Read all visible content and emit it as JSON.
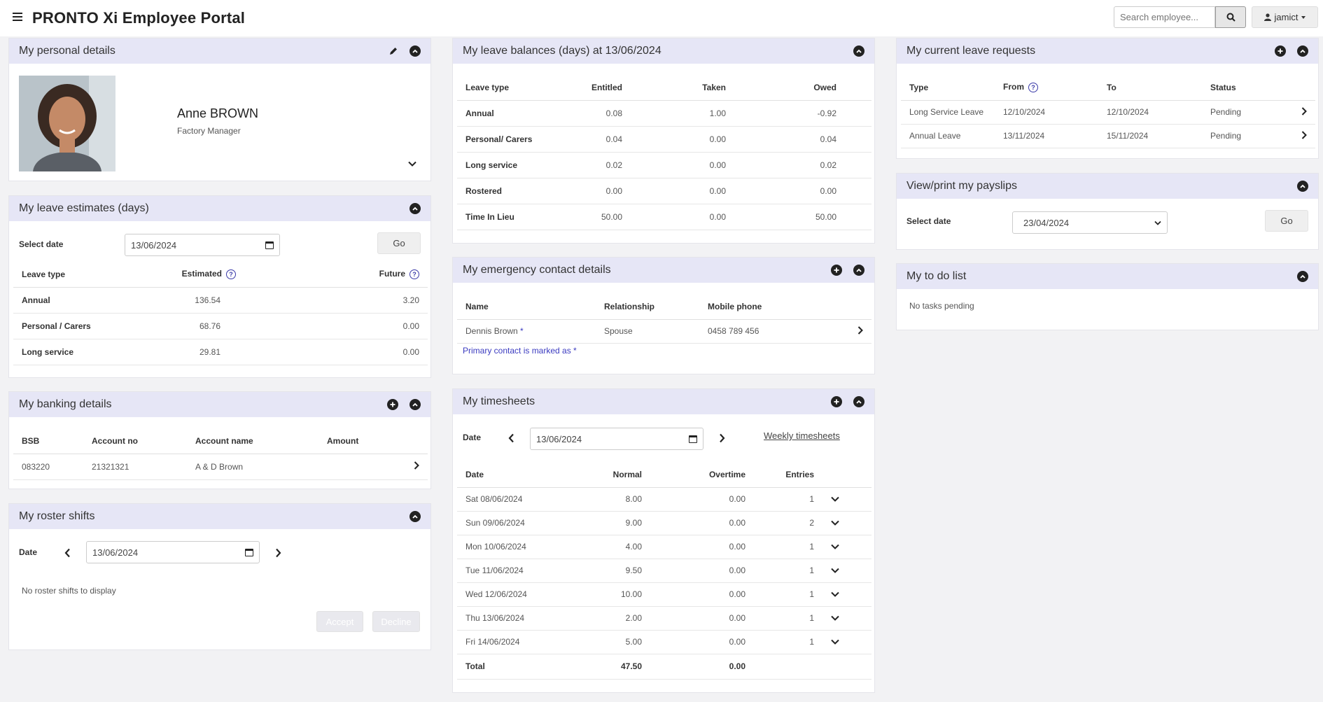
{
  "header": {
    "brand": "PRONTO Xi Employee Portal",
    "search_placeholder": "Search employee...",
    "user": "jamict"
  },
  "personal": {
    "title": "My personal details",
    "name": "Anne BROWN",
    "role": "Factory Manager"
  },
  "leave_estimates": {
    "title": "My leave estimates (days)",
    "select_date_label": "Select date",
    "date": "13/06/2024",
    "go_label": "Go",
    "columns": [
      "Leave type",
      "Estimated",
      "Future"
    ],
    "rows": [
      {
        "type": "Annual",
        "estimated": "136.54",
        "future": "3.20"
      },
      {
        "type": "Personal / Carers",
        "estimated": "68.76",
        "future": "0.00"
      },
      {
        "type": "Long service",
        "estimated": "29.81",
        "future": "0.00"
      }
    ]
  },
  "banking": {
    "title": "My banking details",
    "columns": [
      "BSB",
      "Account no",
      "Account name",
      "Amount"
    ],
    "rows": [
      {
        "bsb": "083220",
        "account_no": "21321321",
        "account_name": "A & D Brown",
        "amount": ""
      }
    ]
  },
  "roster": {
    "title": "My roster shifts",
    "date_label": "Date",
    "date": "13/06/2024",
    "empty": "No roster shifts to display",
    "accept_label": "Accept",
    "decline_label": "Decline"
  },
  "leave_balances": {
    "title": "My leave balances (days) at 13/06/2024",
    "columns": [
      "Leave type",
      "Entitled",
      "Taken",
      "Owed"
    ],
    "rows": [
      {
        "type": "Annual",
        "entitled": "0.08",
        "taken": "1.00",
        "owed": "-0.92"
      },
      {
        "type": "Personal/ Carers",
        "entitled": "0.04",
        "taken": "0.00",
        "owed": "0.04"
      },
      {
        "type": "Long service",
        "entitled": "0.02",
        "taken": "0.00",
        "owed": "0.02"
      },
      {
        "type": "Rostered",
        "entitled": "0.00",
        "taken": "0.00",
        "owed": "0.00"
      },
      {
        "type": "Time In Lieu",
        "entitled": "50.00",
        "taken": "0.00",
        "owed": "50.00"
      }
    ]
  },
  "emergency": {
    "title": "My emergency contact details",
    "columns": [
      "Name",
      "Relationship",
      "Mobile phone"
    ],
    "rows": [
      {
        "name": "Dennis Brown",
        "relationship": "Spouse",
        "mobile": "0458 789 456"
      }
    ],
    "primary_marker": "*",
    "footnote": "Primary contact is marked as *"
  },
  "timesheets": {
    "title": "My timesheets",
    "date_label": "Date",
    "date": "13/06/2024",
    "weekly_link": "Weekly timesheets",
    "columns": [
      "Date",
      "Normal",
      "Overtime",
      "Entries"
    ],
    "rows": [
      {
        "date": "Sat 08/06/2024",
        "normal": "8.00",
        "overtime": "0.00",
        "entries": "1"
      },
      {
        "date": "Sun 09/06/2024",
        "normal": "9.00",
        "overtime": "0.00",
        "entries": "2"
      },
      {
        "date": "Mon 10/06/2024",
        "normal": "4.00",
        "overtime": "0.00",
        "entries": "1"
      },
      {
        "date": "Tue 11/06/2024",
        "normal": "9.50",
        "overtime": "0.00",
        "entries": "1"
      },
      {
        "date": "Wed 12/06/2024",
        "normal": "10.00",
        "overtime": "0.00",
        "entries": "1"
      },
      {
        "date": "Thu 13/06/2024",
        "normal": "2.00",
        "overtime": "0.00",
        "entries": "1"
      },
      {
        "date": "Fri 14/06/2024",
        "normal": "5.00",
        "overtime": "0.00",
        "entries": "1"
      }
    ],
    "total_label": "Total",
    "total_normal": "47.50",
    "total_overtime": "0.00"
  },
  "requests": {
    "title": "My current leave requests",
    "columns": [
      "Type",
      "From",
      "To",
      "Status"
    ],
    "rows": [
      {
        "type": "Long Service Leave",
        "from": "12/10/2024",
        "to": "12/10/2024",
        "status": "Pending"
      },
      {
        "type": "Annual Leave",
        "from": "13/11/2024",
        "to": "15/11/2024",
        "status": "Pending"
      }
    ]
  },
  "payslips": {
    "title": "View/print my payslips",
    "select_date_label": "Select date",
    "selected_date": "23/04/2024",
    "go_label": "Go"
  },
  "todo": {
    "title": "My to do list",
    "empty": "No tasks pending"
  }
}
